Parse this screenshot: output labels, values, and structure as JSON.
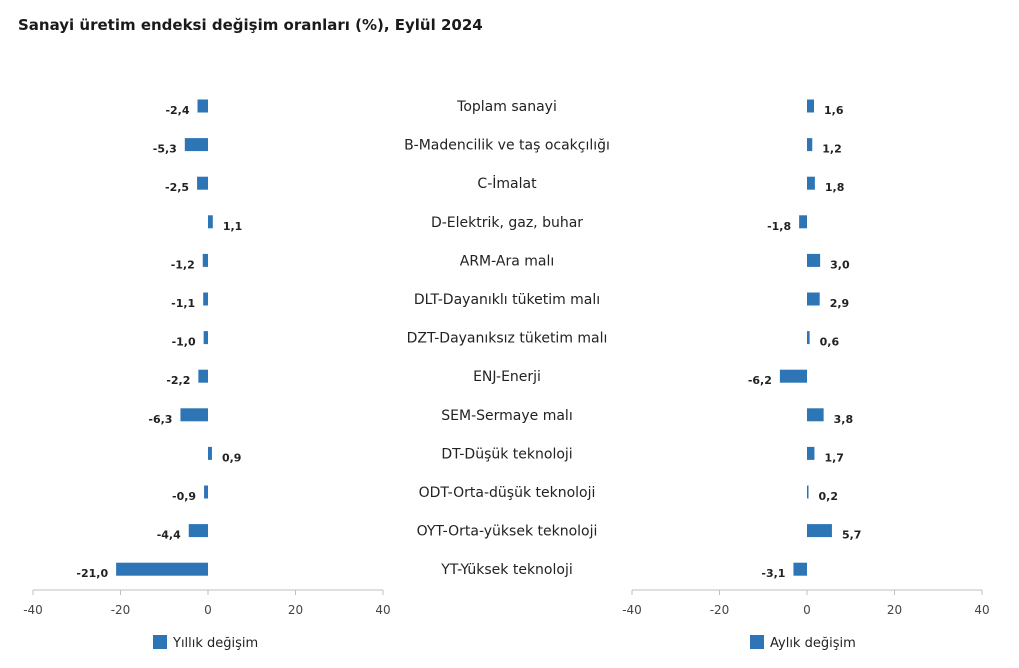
{
  "title": "Sanayi üretim endeksi değişim oranları (%), Eylül 2024",
  "chart_data": [
    {
      "type": "bar",
      "orientation": "horizontal",
      "series": [
        {
          "name": "Yıllık değişim",
          "values": [
            -2.4,
            -5.3,
            -2.5,
            1.1,
            -1.2,
            -1.1,
            -1.0,
            -2.2,
            -6.3,
            0.9,
            -0.9,
            -4.4,
            -21.0
          ]
        }
      ],
      "value_labels": [
        "-2,4",
        "-5,3",
        "-2,5",
        "1,1",
        "-1,2",
        "-1,1",
        "-1,0",
        "-2,2",
        "-6,3",
        "0,9",
        "-0,9",
        "-4,4",
        "-21,0"
      ],
      "xlim": [
        -40,
        40
      ],
      "xticks": [
        -40,
        -20,
        0,
        20,
        40
      ],
      "legend_position": "bottom",
      "color": "#2e75b6"
    },
    {
      "type": "bar",
      "orientation": "horizontal",
      "series": [
        {
          "name": "Aylık değişim",
          "values": [
            1.6,
            1.2,
            1.8,
            -1.8,
            3.0,
            2.9,
            0.6,
            -6.2,
            3.8,
            1.7,
            0.2,
            5.7,
            -3.1
          ]
        }
      ],
      "value_labels": [
        "1,6",
        "1,2",
        "1,8",
        "-1,8",
        "3,0",
        "2,9",
        "0,6",
        "-6,2",
        "3,8",
        "1,7",
        "0,2",
        "5,7",
        "-3,1"
      ],
      "xlim": [
        -40,
        40
      ],
      "xticks": [
        -40,
        -20,
        0,
        20,
        40
      ],
      "legend_position": "bottom",
      "color": "#2e75b6"
    }
  ],
  "categories": [
    "Toplam sanayi",
    "B-Madencilik ve taş ocakçılığı",
    "C-İmalat",
    "D-Elektrik, gaz, buhar",
    "ARM-Ara malı",
    "DLT-Dayanıklı tüketim malı",
    "DZT-Dayanıksız tüketim malı",
    "ENJ-Enerji",
    "SEM-Sermaye malı",
    "DT-Düşük teknoloji",
    "ODT-Orta-düşük teknoloji",
    "OYT-Orta-yüksek teknoloji",
    "YT-Yüksek teknoloji"
  ]
}
